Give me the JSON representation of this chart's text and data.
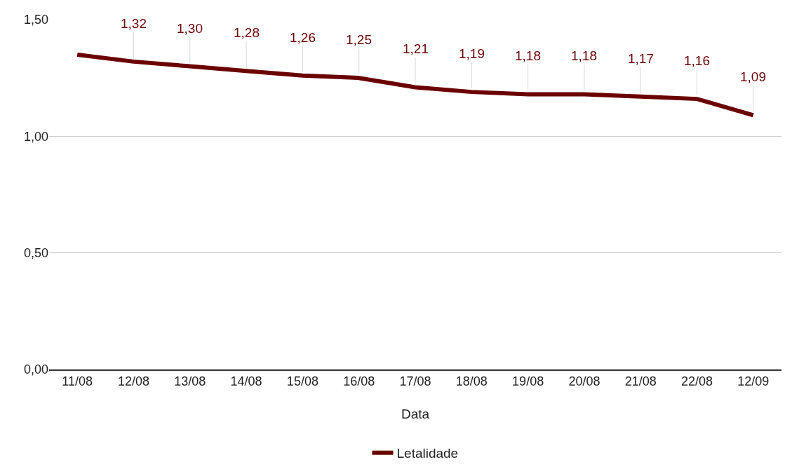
{
  "chart_data": {
    "type": "line",
    "xlabel": "Data",
    "categories": [
      "11/08",
      "12/08",
      "13/08",
      "14/08",
      "15/08",
      "16/08",
      "17/08",
      "18/08",
      "19/08",
      "20/08",
      "21/08",
      "22/08",
      "12/09"
    ],
    "series": [
      {
        "name": "Letalidade",
        "color": "#6b0000",
        "values": [
          1.35,
          1.32,
          1.3,
          1.28,
          1.26,
          1.25,
          1.21,
          1.19,
          1.18,
          1.18,
          1.17,
          1.16,
          1.09
        ],
        "value_labels": [
          null,
          "1,32",
          "1,30",
          "1,28",
          "1,26",
          "1,25",
          "1,21",
          "1,19",
          "1,18",
          "1,18",
          "1,17",
          "1,16",
          "1,09"
        ]
      }
    ],
    "ylim": [
      0,
      1.5
    ],
    "yticks": [
      {
        "value": 0,
        "label": "0,00"
      },
      {
        "value": 0.5,
        "label": "0,50"
      },
      {
        "value": 1,
        "label": "1,00"
      },
      {
        "value": 1.5,
        "label": "1,50"
      }
    ],
    "grid": "y",
    "legend": "bottom",
    "marker": "none",
    "line_style": "solid"
  }
}
